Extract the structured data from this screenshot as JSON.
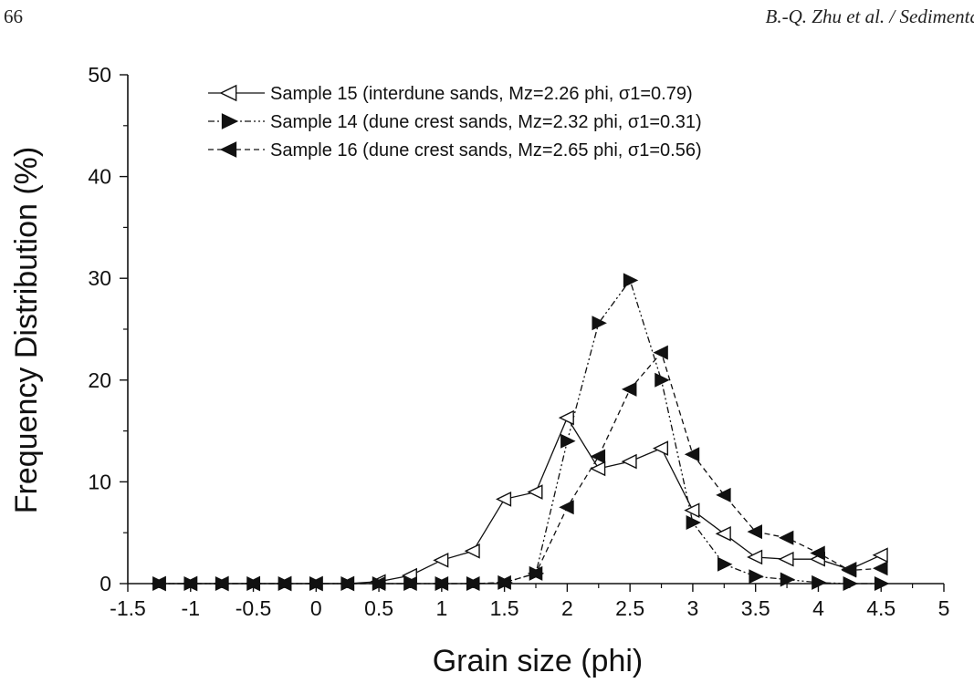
{
  "header": {
    "page_number": "66",
    "running_head": "B.-Q. Zhu et al. / Sedimenta"
  },
  "chart_data": {
    "type": "line",
    "xlabel": "Grain size (phi)",
    "ylabel": "Frequency Distribution (%)",
    "xlim": [
      -1.5,
      5
    ],
    "ylim": [
      0,
      50
    ],
    "x_ticks": [
      -1.5,
      -1,
      -0.5,
      0,
      0.5,
      1,
      1.5,
      2,
      2.5,
      3,
      3.5,
      4,
      4.5,
      5
    ],
    "x_tick_labels": [
      "-1.5",
      "-1",
      "-0.5",
      "0",
      "0.5",
      "1",
      "1.5",
      "2",
      "2.5",
      "3",
      "3.5",
      "4",
      "4.5",
      "5"
    ],
    "y_ticks": [
      0,
      10,
      20,
      30,
      40,
      50
    ],
    "y_tick_labels": [
      "0",
      "10",
      "20",
      "30",
      "40",
      "50"
    ],
    "x": [
      -1.25,
      -1,
      -0.75,
      -0.5,
      -0.25,
      0,
      0.25,
      0.5,
      0.75,
      1,
      1.25,
      1.5,
      1.75,
      2,
      2.25,
      2.5,
      2.75,
      3,
      3.25,
      3.5,
      3.75,
      4,
      4.25,
      4.5
    ],
    "legend_position": "top",
    "series": [
      {
        "name": "Sample 15 (interdune sands, Mz=2.26 phi, σ1=0.79)",
        "marker": "open-left-triangle",
        "dash": "solid",
        "values": [
          0,
          0,
          0,
          0,
          0,
          0,
          0,
          0.2,
          0.8,
          2.3,
          3.2,
          8.3,
          9,
          16.3,
          11.3,
          12,
          13.3,
          7.2,
          4.9,
          2.6,
          2.4,
          2.4,
          1.4,
          2.8
        ]
      },
      {
        "name": "Sample 14 (dune crest sands, Mz=2.32 phi, σ1=0.31)",
        "marker": "filled-right-triangle",
        "dash": "dash-dot-dot",
        "values": [
          0,
          0,
          0,
          0,
          0,
          0,
          0,
          0,
          0,
          0,
          0,
          0.1,
          1,
          14,
          25.6,
          29.8,
          20,
          6,
          1.9,
          0.7,
          0.4,
          0.1,
          0,
          0
        ]
      },
      {
        "name": "Sample 16 (dune crest sands, Mz=2.65 phi, σ1=0.56)",
        "marker": "filled-left-triangle",
        "dash": "dashed",
        "values": [
          0,
          0,
          0,
          0,
          0,
          0,
          0,
          0,
          0,
          0,
          0,
          0.1,
          1,
          7.5,
          12.5,
          19.1,
          22.7,
          12.7,
          8.7,
          5.1,
          4.5,
          3,
          1.3,
          1.5
        ]
      }
    ]
  }
}
